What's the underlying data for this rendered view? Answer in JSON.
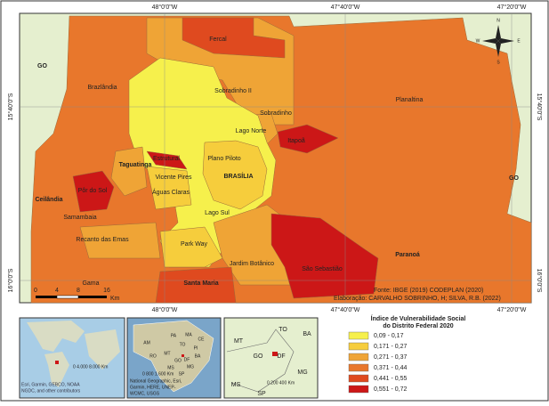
{
  "map": {
    "coordinates": {
      "top": [
        "48°0'0\"W",
        "47°40'0\"W",
        "47°20'0\"W"
      ],
      "bottom": [
        "48°0'0\"W",
        "47°40'0\"W",
        "47°20'0\"W"
      ],
      "left": [
        "15°40'0\"S",
        "16°0'0\"S"
      ],
      "right": [
        "15°40'0\"S",
        "16°0'0\"S"
      ]
    },
    "regions": [
      "Fercal",
      "Brazlândia",
      "Sobradinho II",
      "Sobradinho",
      "Planaltina",
      "Lago Norte",
      "Itapoã",
      "Taguatinga",
      "Estrutural",
      "Plano Piloto",
      "Vicente Pires",
      "Águas Claras",
      "BRASÍLIA",
      "Ceilândia",
      "Pôr do Sol",
      "Samambaia",
      "Lago Sul",
      "Recanto das Emas",
      "Park Way",
      "Paranoá",
      "Jardim Botânico",
      "São Sebastião",
      "Gama",
      "Santa Maria"
    ],
    "neighbors": [
      "GO",
      "GO"
    ],
    "scale": {
      "ticks": [
        0,
        4,
        8,
        16
      ],
      "unit": "Km"
    },
    "compass": [
      "N",
      "S",
      "E",
      "W"
    ],
    "source": "Fonte: IBGE (2019) CODEPLAN (2020)",
    "credits": "Elaboração: CARVALHO SOBRINHO, H; SILVA, R.B. (2022)"
  },
  "legend": {
    "title": [
      "Índice de Vulnerabilidade Social",
      "do Distrito Federal 2020"
    ],
    "classes": [
      {
        "label": "0,09 - 0,17",
        "color": "#f6f04c"
      },
      {
        "label": "0,171 - 0,27",
        "color": "#f6cd3c"
      },
      {
        "label": "0,271 - 0,37",
        "color": "#efa436"
      },
      {
        "label": "0,371 - 0,44",
        "color": "#e8772c"
      },
      {
        "label": "0,441 - 0,55",
        "color": "#df4a1f"
      },
      {
        "label": "0,551 - 0,72",
        "color": "#cc1717"
      }
    ]
  },
  "insets": [
    {
      "scale": "0  4.000  8.000 Km",
      "attribution": [
        "Esri, Garmin, GEBCO, NOAA",
        "NGDC, and other contributors"
      ]
    },
    {
      "labels": [
        "PA",
        "MA",
        "CE",
        "AM",
        "PI",
        "RO",
        "TO",
        "BA",
        "MT",
        "GO",
        "DF",
        "MG",
        "MS",
        "SP"
      ],
      "scale": "0  800  1.600 Km",
      "attribution": [
        "National Geographic, Esri,",
        "Garmin, HERE, UNEP-",
        "WCMC, USGS"
      ]
    },
    {
      "labels": [
        "MT",
        "TO",
        "BA",
        "GO",
        "DF",
        "MG",
        "MS",
        "SP"
      ],
      "scale": "0  200  400 Km"
    }
  ]
}
